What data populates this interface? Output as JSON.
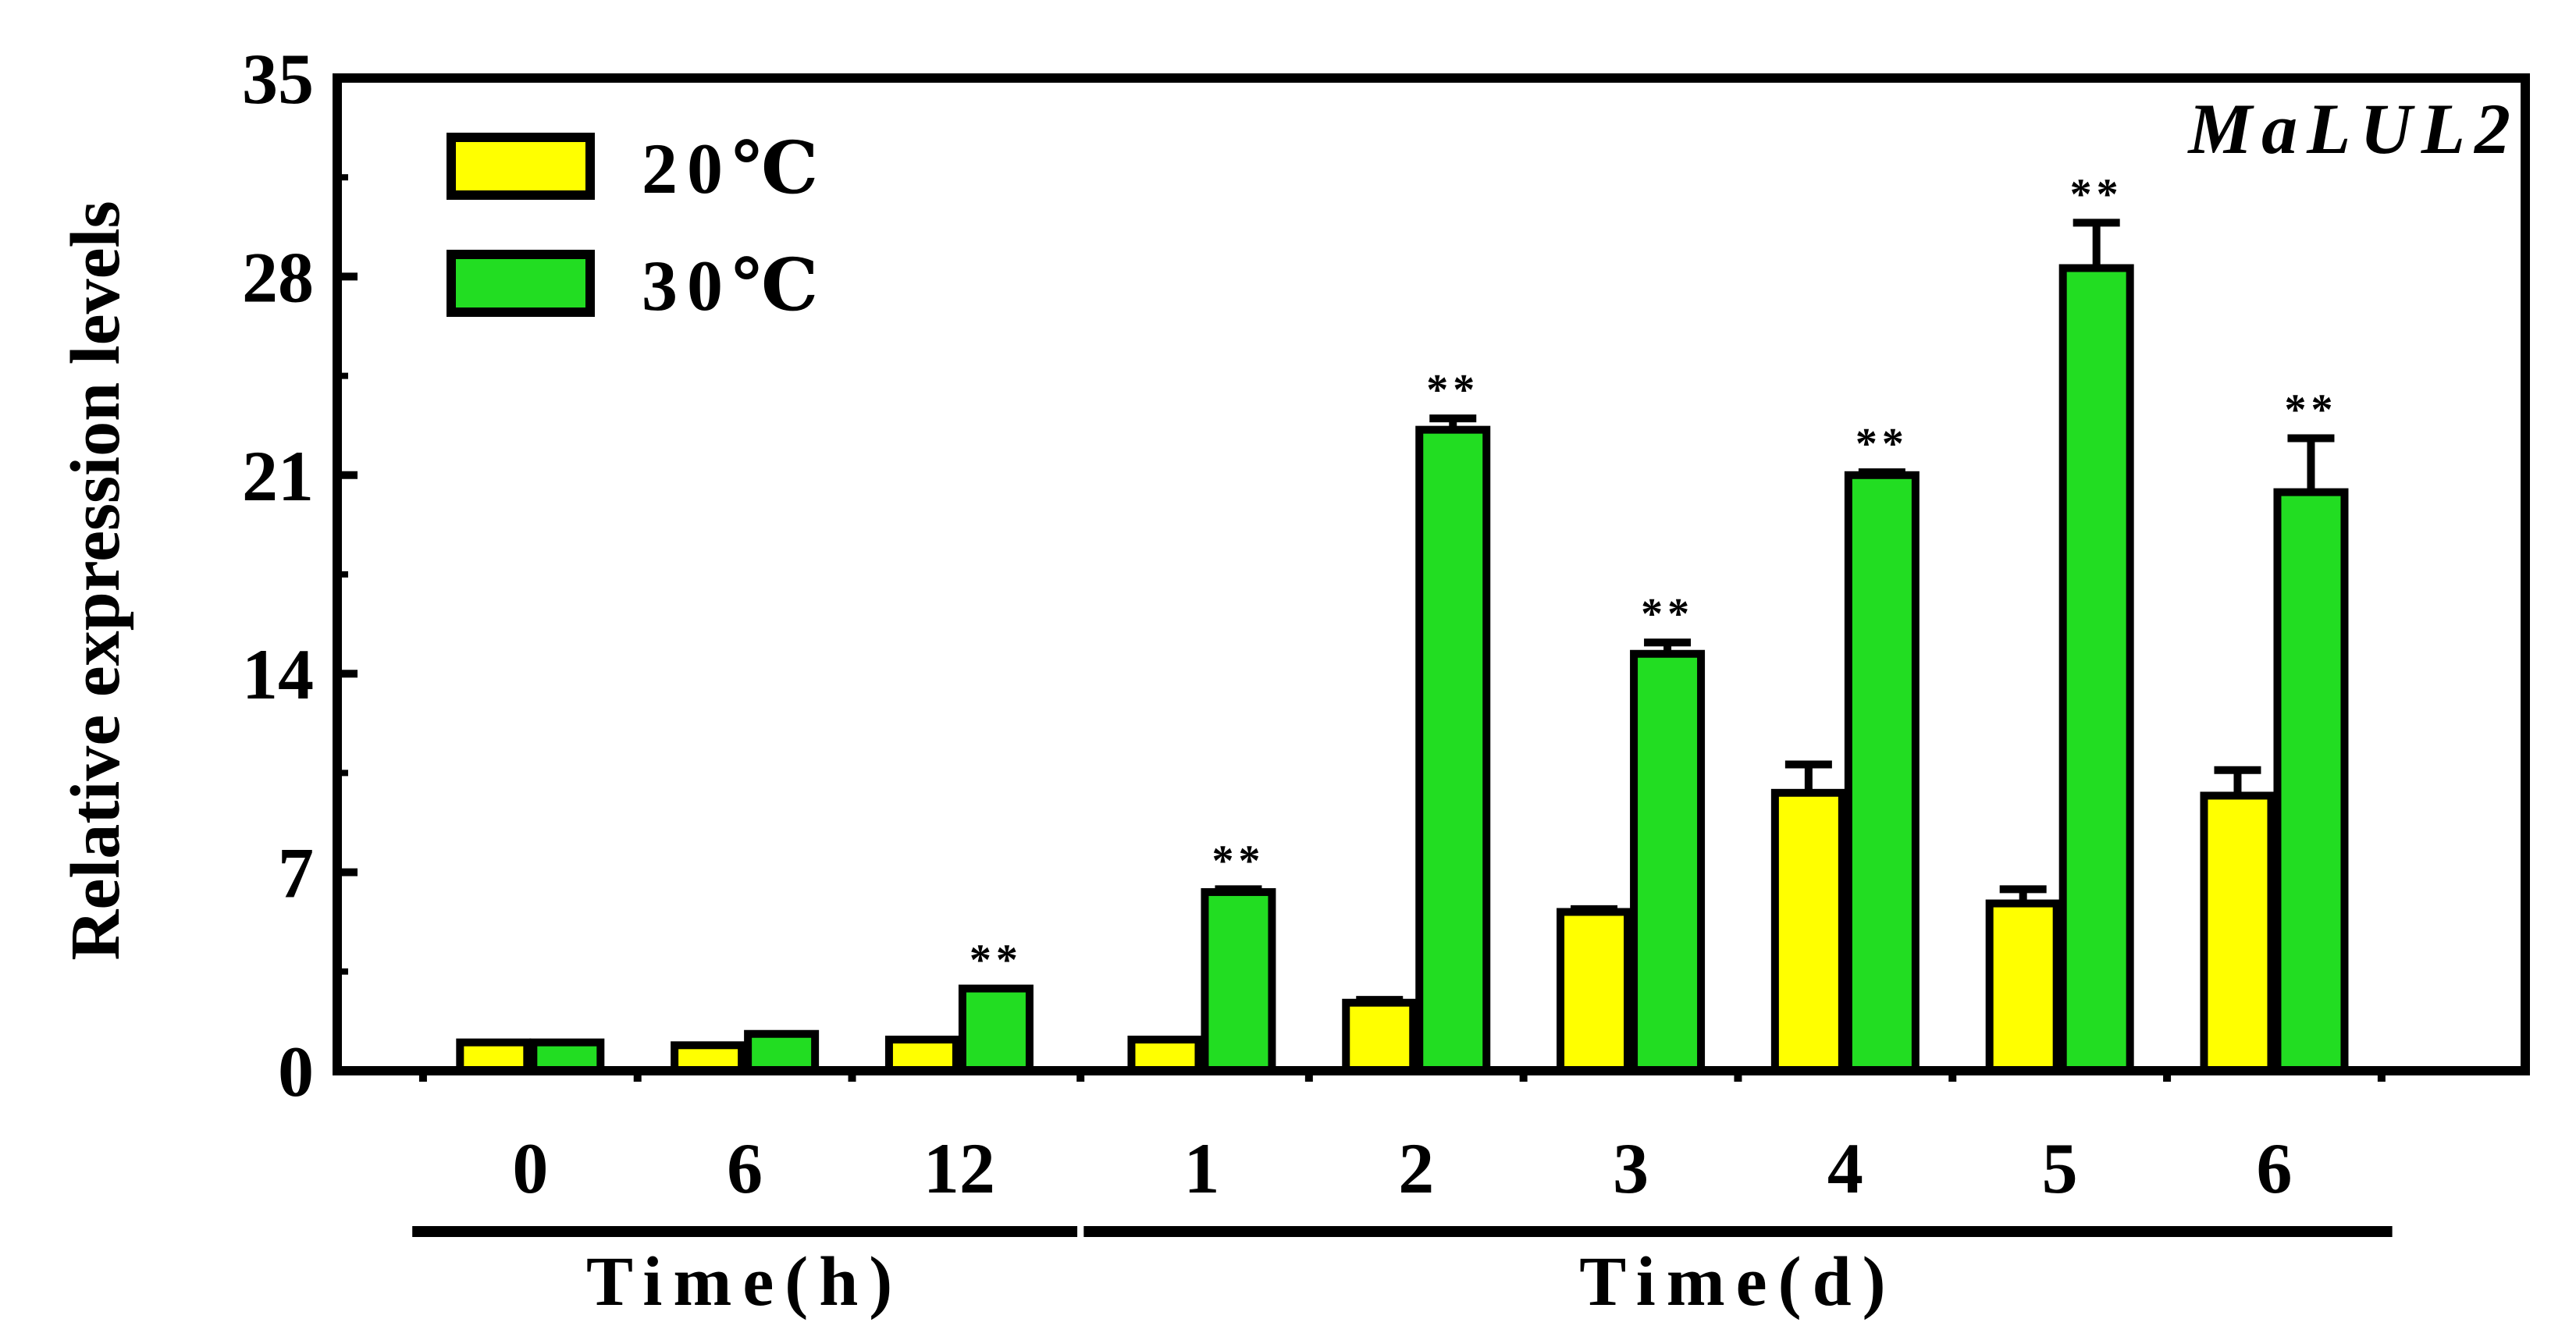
{
  "chart_data": {
    "type": "bar",
    "title": "MaLUL2",
    "ylabel": "Relative expression levels",
    "ylim": [
      0,
      35
    ],
    "yticks": [
      "0",
      "7",
      "14",
      "21",
      "28",
      "35"
    ],
    "categories": [
      "0",
      "6",
      "12",
      "1",
      "2",
      "3",
      "4",
      "5",
      "6"
    ],
    "groups": [
      {
        "label": "Time(h)",
        "categories": [
          0,
          1,
          2
        ]
      },
      {
        "label": "Time(d)",
        "categories": [
          3,
          4,
          5,
          6,
          7,
          8
        ]
      }
    ],
    "series": [
      {
        "name": "20℃",
        "color": "#ffff00",
        "values": [
          1.0,
          0.9,
          1.1,
          1.1,
          2.4,
          5.6,
          9.8,
          5.9,
          9.7
        ],
        "errors": [
          0.0,
          0.0,
          0.0,
          0.0,
          0.1,
          0.1,
          1.0,
          0.5,
          0.9
        ]
      },
      {
        "name": "30℃",
        "color": "#22dd22",
        "values": [
          1.0,
          1.3,
          2.9,
          6.3,
          22.6,
          14.7,
          21.0,
          28.3,
          20.4
        ],
        "errors": [
          0.0,
          0.0,
          0.0,
          0.1,
          0.4,
          0.4,
          0.1,
          1.6,
          1.9
        ]
      }
    ],
    "significance": [
      "",
      "",
      "**",
      "**",
      "**",
      "**",
      "**",
      "**",
      "**"
    ],
    "legend_position": "top-left",
    "grid": false
  }
}
